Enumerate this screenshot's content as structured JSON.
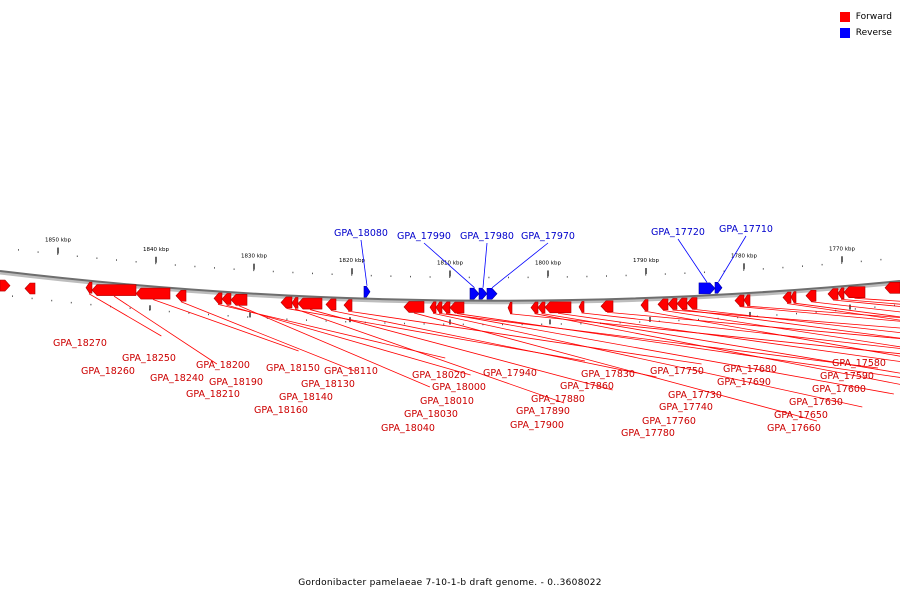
{
  "legend": {
    "forward_label": "Forward",
    "reverse_label": "Reverse",
    "forward_color": "#ff0000",
    "reverse_color": "#0000ff"
  },
  "caption": "Gordonibacter pamelaeae 7-10-1-b draft genome. - 0..3608022",
  "scale_labels": [
    "1850 kbp",
    "1840 kbp",
    "1830 kbp",
    "1820 kbp",
    "1810 kbp",
    "1800 kbp",
    "1790 kbp",
    "1780 kbp",
    "1770 kbp"
  ],
  "reverse_genes": [
    "GPA_18080",
    "GPA_17990",
    "GPA_17980",
    "GPA_17970",
    "GPA_17720",
    "GPA_17710"
  ],
  "forward_genes": [
    "GPA_18270",
    "GPA_18260",
    "GPA_18250",
    "GPA_18240",
    "GPA_18200",
    "GPA_18190",
    "GPA_18210",
    "GPA_18150",
    "GPA_18160",
    "GPA_18140",
    "GPA_18130",
    "GPA_18110",
    "GPA_18040",
    "GPA_18030",
    "GPA_18020",
    "GPA_18010",
    "GPA_18000",
    "GPA_17940",
    "GPA_17900",
    "GPA_17890",
    "GPA_17880",
    "GPA_17860",
    "GPA_17830",
    "GPA_17780",
    "GPA_17760",
    "GPA_17750",
    "GPA_17740",
    "GPA_17730",
    "GPA_17690",
    "GPA_17680",
    "GPA_17660",
    "GPA_17650",
    "GPA_17630",
    "GPA_17600",
    "GPA_17590",
    "GPA_17580"
  ]
}
